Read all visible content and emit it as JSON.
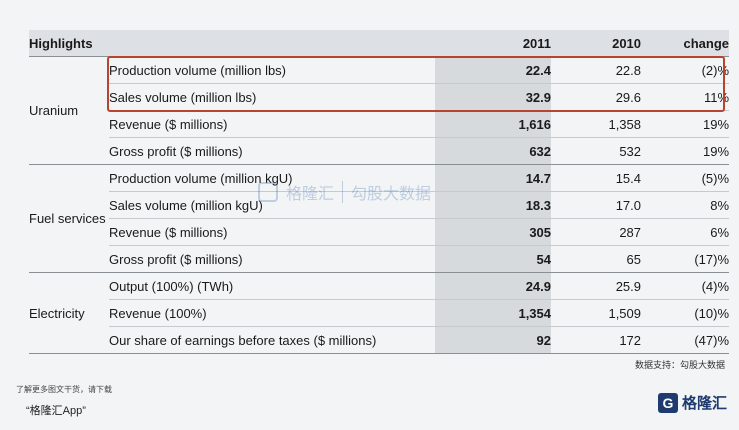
{
  "table": {
    "headers": {
      "segment": "Highlights",
      "y2011": "2011",
      "y2010": "2010",
      "change": "change"
    },
    "groups": [
      {
        "segment": "Uranium",
        "rows": [
          {
            "metric": "Production volume (million lbs)",
            "y2011": "22.4",
            "y2010": "22.8",
            "change": "(2)%"
          },
          {
            "metric": "Sales volume (million lbs)",
            "y2011": "32.9",
            "y2010": "29.6",
            "change": "11%"
          },
          {
            "metric": "Revenue ($ millions)",
            "y2011": "1,616",
            "y2010": "1,358",
            "change": "19%"
          },
          {
            "metric": "Gross profit ($ millions)",
            "y2011": "632",
            "y2010": "532",
            "change": "19%"
          }
        ]
      },
      {
        "segment": "Fuel services",
        "rows": [
          {
            "metric": "Production volume (million kgU)",
            "y2011": "14.7",
            "y2010": "15.4",
            "change": "(5)%"
          },
          {
            "metric": "Sales volume (million kgU)",
            "y2011": "18.3",
            "y2010": "17.0",
            "change": "8%"
          },
          {
            "metric": "Revenue ($ millions)",
            "y2011": "305",
            "y2010": "287",
            "change": "6%"
          },
          {
            "metric": "Gross profit ($ millions)",
            "y2011": "54",
            "y2010": "65",
            "change": "(17)%"
          }
        ]
      },
      {
        "segment": "Electricity",
        "rows": [
          {
            "metric": "Output (100%) (TWh)",
            "y2011": "24.9",
            "y2010": "25.9",
            "change": "(4)%"
          },
          {
            "metric": "Revenue (100%)",
            "y2011": "1,354",
            "y2010": "1,509",
            "change": "(10)%"
          },
          {
            "metric": "Our share of earnings before taxes ($ millions)",
            "y2011": "92",
            "y2010": "172",
            "change": "(47)%"
          }
        ]
      }
    ]
  },
  "source_note": "数据支持：勾股大数据",
  "watermark": {
    "left": "格隆汇",
    "right": "勾股大数据"
  },
  "footer": {
    "line": "了解更多图文干货，请下载",
    "app": "“格隆汇App”"
  },
  "brand": {
    "mark": "G",
    "name": "格隆汇"
  },
  "colors": {
    "highlight": "#b8442f",
    "header_bg": "#dde1e5",
    "col2011_bg": "#d6dadd"
  }
}
